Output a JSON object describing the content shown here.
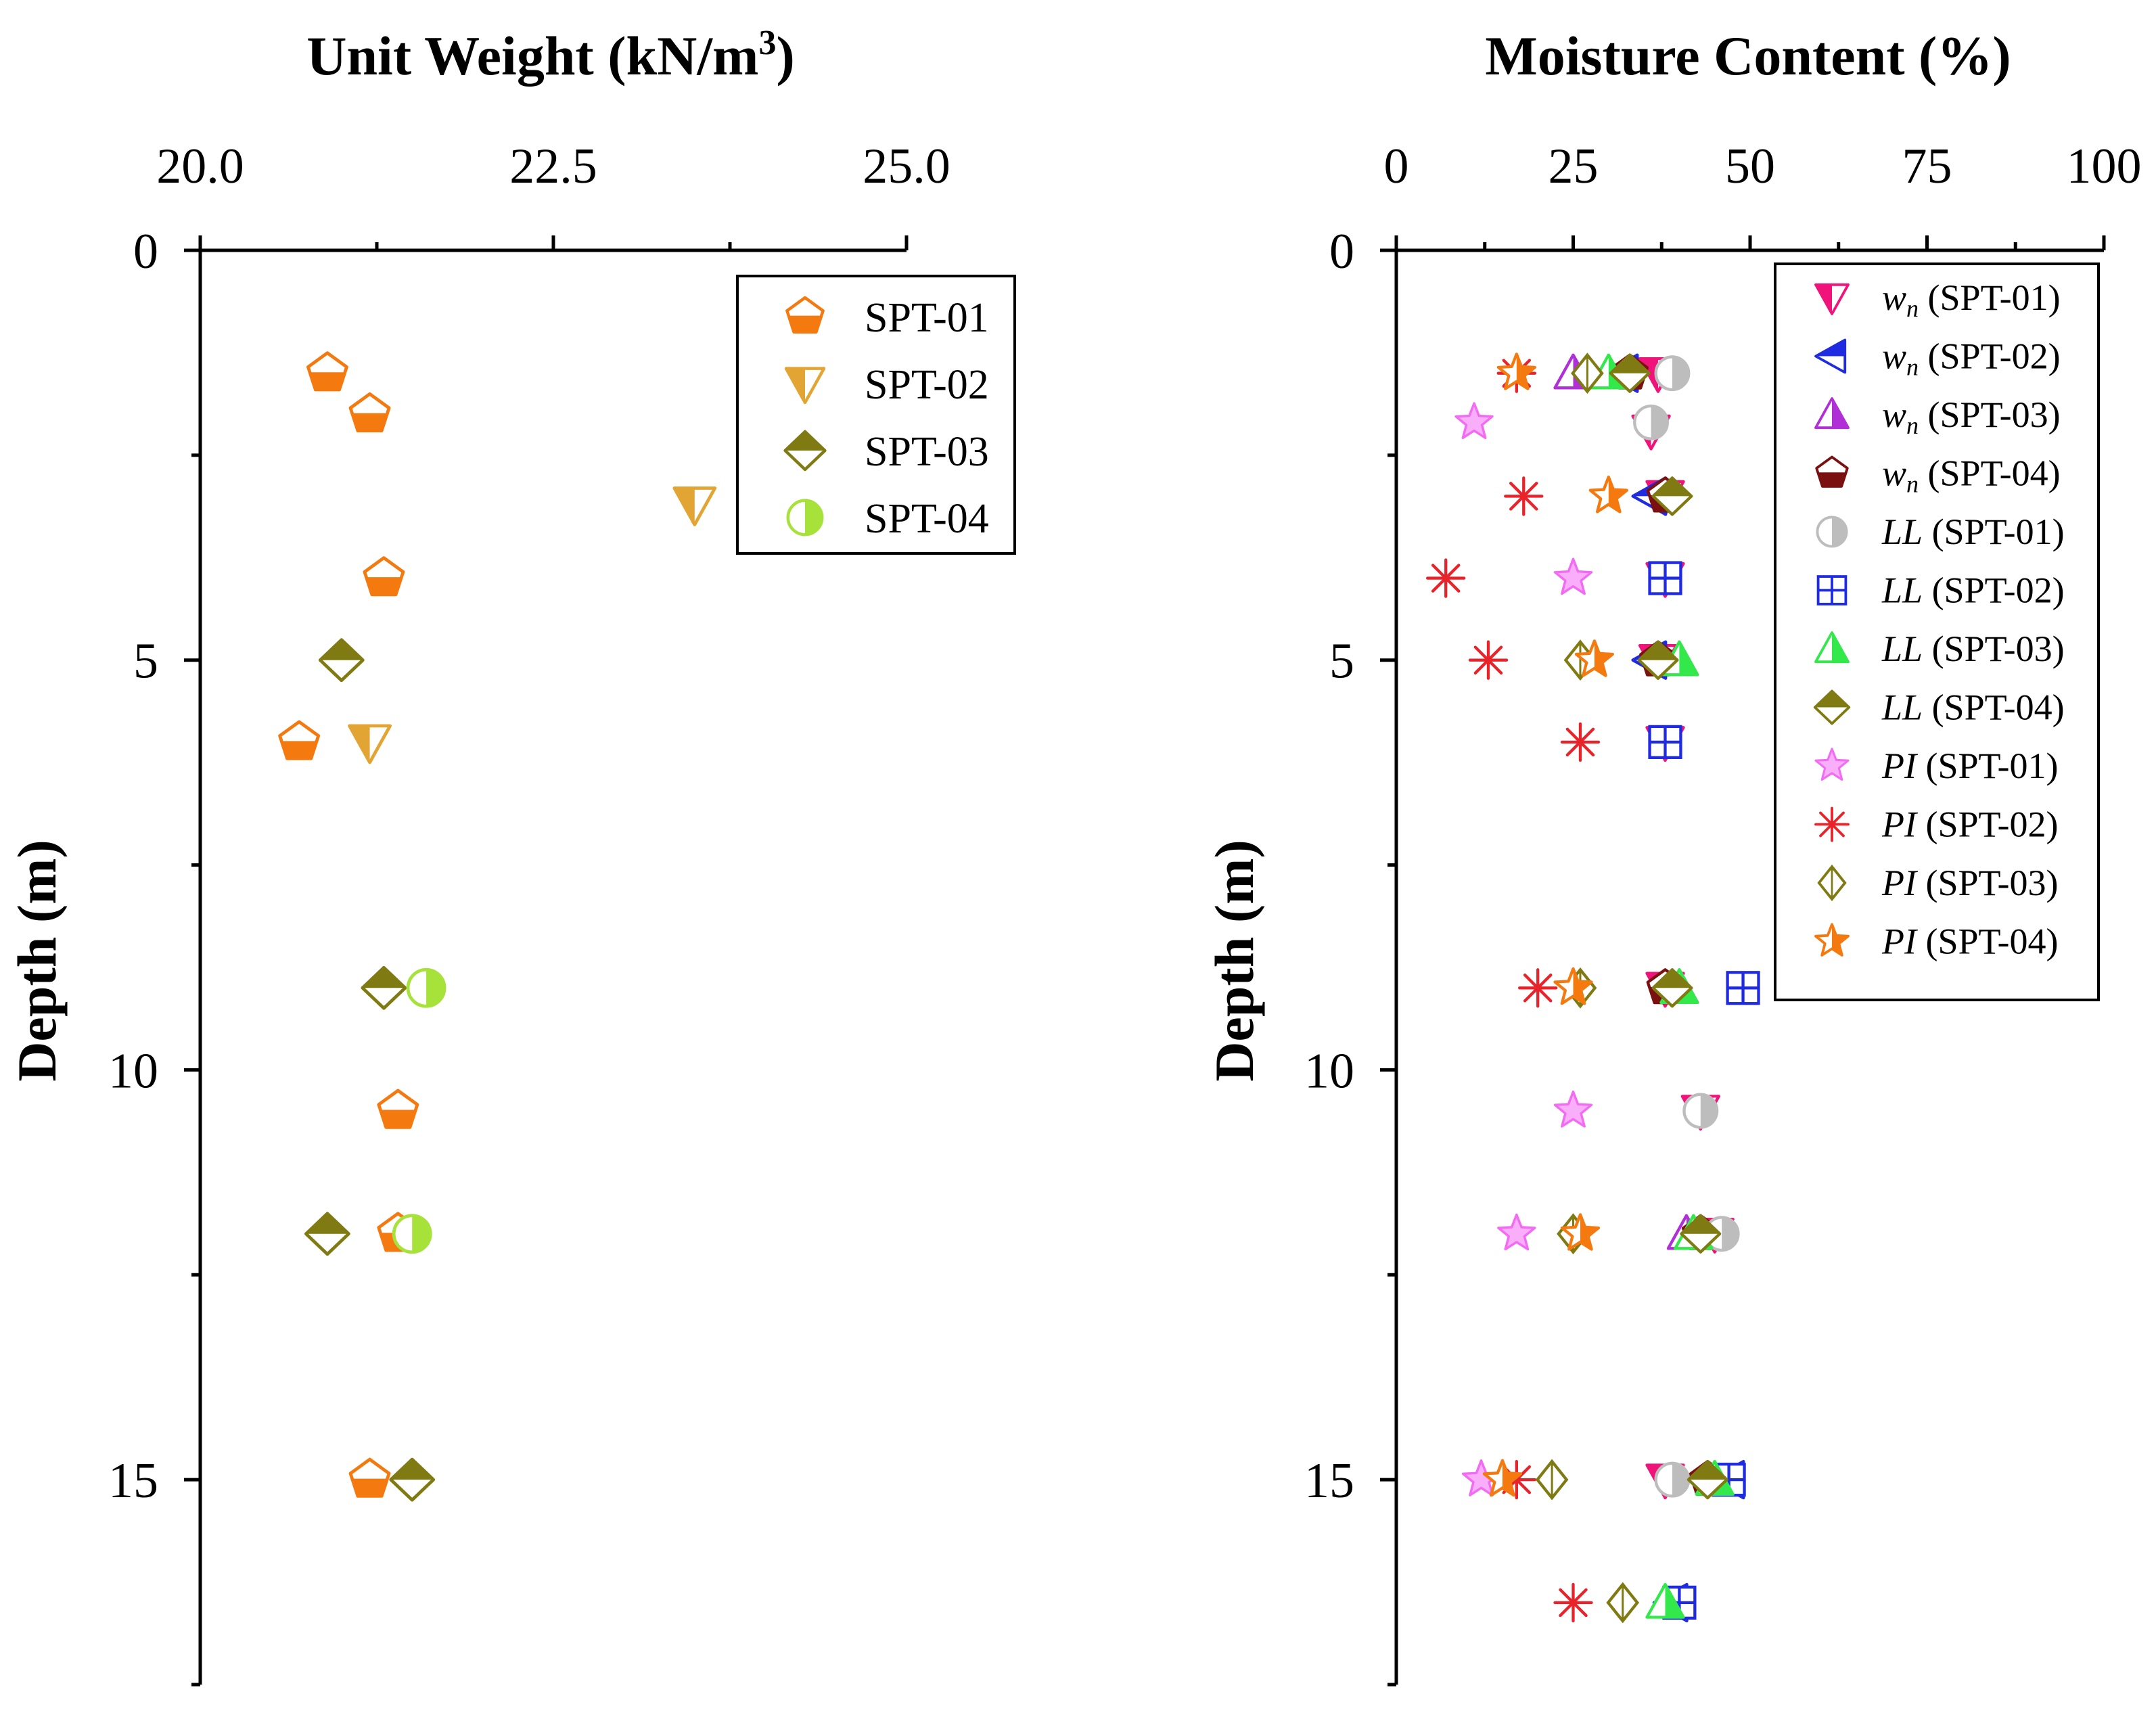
{
  "figure": {
    "panels": [
      {
        "title_prefix": "Unit Weight (kN/m",
        "title_sup": "3",
        "title_suffix": ")",
        "ylabel": "Depth (m)",
        "xticks": [
          "20.0",
          "22.5",
          "25.0"
        ],
        "yticks": [
          "0",
          "5",
          "10",
          "15"
        ],
        "legend": [
          "SPT-01",
          "SPT-02",
          "SPT-03",
          "SPT-04"
        ]
      },
      {
        "title": "Moisture Content (%)",
        "ylabel": "Depth (m)",
        "xticks": [
          "0",
          "25",
          "50",
          "75",
          "100"
        ],
        "yticks": [
          "0",
          "5",
          "10",
          "15"
        ],
        "legend": [
          {
            "sym": "w",
            "sub": "n",
            "label": " (SPT-01)"
          },
          {
            "sym": "w",
            "sub": "n",
            "label": " (SPT-02)"
          },
          {
            "sym": "w",
            "sub": "n",
            "label": " (SPT-03)"
          },
          {
            "sym": "w",
            "sub": "n",
            "label": " (SPT-04)"
          },
          {
            "sym": "LL",
            "sub": "",
            "label": " (SPT-01)"
          },
          {
            "sym": "LL",
            "sub": "",
            "label": " (SPT-02)"
          },
          {
            "sym": "LL",
            "sub": "",
            "label": " (SPT-03)"
          },
          {
            "sym": "LL",
            "sub": "",
            "label": " (SPT-04)"
          },
          {
            "sym": "PI",
            "sub": "",
            "label": " (SPT-01)"
          },
          {
            "sym": "PI",
            "sub": "",
            "label": " (SPT-02)"
          },
          {
            "sym": "PI",
            "sub": "",
            "label": " (SPT-03)"
          },
          {
            "sym": "PI",
            "sub": "",
            "label": " (SPT-04)"
          }
        ]
      }
    ]
  },
  "chart_data": [
    {
      "type": "scatter",
      "title": "Unit Weight (kN/m3)",
      "xlabel": "Unit Weight (kN/m3)",
      "ylabel": "Depth (m)",
      "xlim": [
        20.0,
        25.0
      ],
      "ylim": [
        0,
        17.5
      ],
      "y_inverted": true,
      "x_axis_position": "top",
      "legend_position": "top-right",
      "series": [
        {
          "name": "SPT-01",
          "marker": "pentagon-half",
          "color": "#F47A10",
          "points": [
            [
              20.9,
              1.5
            ],
            [
              21.2,
              2.0
            ],
            [
              21.3,
              4.0
            ],
            [
              20.7,
              6.0
            ],
            [
              21.4,
              10.5
            ],
            [
              21.4,
              12.0
            ],
            [
              21.2,
              15.0
            ]
          ]
        },
        {
          "name": "SPT-02",
          "marker": "triangle-down-half",
          "color": "#E2A533",
          "points": [
            [
              23.5,
              3.1
            ],
            [
              21.2,
              6.0
            ]
          ]
        },
        {
          "name": "SPT-03",
          "marker": "diamond-half",
          "color": "#7F7B12",
          "points": [
            [
              21.0,
              5.0
            ],
            [
              21.3,
              9.0
            ],
            [
              20.9,
              12.0
            ],
            [
              21.5,
              15.0
            ]
          ]
        },
        {
          "name": "SPT-04",
          "marker": "circle-half",
          "color": "#A6E23A",
          "points": [
            [
              21.6,
              9.0
            ],
            [
              21.5,
              12.0
            ]
          ]
        }
      ]
    },
    {
      "type": "scatter",
      "title": "Moisture Content (%)",
      "xlabel": "Moisture Content (%)",
      "ylabel": "Depth (m)",
      "xlim": [
        0,
        100
      ],
      "ylim": [
        0,
        17.5
      ],
      "y_inverted": true,
      "x_axis_position": "top",
      "legend_position": "top-right",
      "series": [
        {
          "name": "wn (SPT-01)",
          "marker": "triangle-down-half",
          "color": "#F0147A",
          "points": [
            [
              37,
              1.5
            ],
            [
              36,
              2.2
            ],
            [
              38,
              3.0
            ],
            [
              38,
              4.0
            ],
            [
              37,
              5.0
            ],
            [
              38,
              6.0
            ],
            [
              38,
              9.0
            ],
            [
              43,
              10.5
            ],
            [
              45,
              12.0
            ],
            [
              38,
              15.0
            ]
          ]
        },
        {
          "name": "wn (SPT-02)",
          "marker": "triangle-left-half",
          "color": "#1F2BE0",
          "points": [
            [
              32,
              1.5
            ],
            [
              36,
              3.0
            ],
            [
              36,
              5.0
            ],
            [
              47,
              15.0
            ],
            [
              39,
              16.5
            ]
          ]
        },
        {
          "name": "wn (SPT-03)",
          "marker": "triangle-up-half",
          "color": "#B02FD6",
          "points": [
            [
              25,
              1.5
            ],
            [
              40,
              9.0
            ],
            [
              41,
              12.0
            ]
          ]
        },
        {
          "name": "wn (SPT-04)",
          "marker": "pentagon-half",
          "color": "#7A1010",
          "points": [
            [
              33,
              1.5
            ],
            [
              38,
              3.0
            ],
            [
              37,
              5.0
            ],
            [
              38,
              9.0
            ],
            [
              43,
              12.0
            ],
            [
              44,
              15.0
            ]
          ]
        },
        {
          "name": "LL (SPT-01)",
          "marker": "circle-half",
          "color": "#BDBDBD",
          "points": [
            [
              39,
              1.5
            ],
            [
              36,
              2.1
            ],
            [
              43,
              10.5
            ],
            [
              46,
              12.0
            ],
            [
              39,
              15.0
            ]
          ]
        },
        {
          "name": "LL (SPT-02)",
          "marker": "square-cross",
          "color": "#1F2BE0",
          "points": [
            [
              38,
              4.0
            ],
            [
              38,
              6.0
            ],
            [
              49,
              9.0
            ],
            [
              47,
              15.0
            ],
            [
              40,
              16.5
            ]
          ]
        },
        {
          "name": "LL (SPT-03)",
          "marker": "triangle-up-half",
          "color": "#33E84A",
          "points": [
            [
              30,
              1.5
            ],
            [
              40,
              5.0
            ],
            [
              40,
              9.0
            ],
            [
              42,
              12.0
            ],
            [
              45,
              15.0
            ],
            [
              38,
              16.5
            ]
          ]
        },
        {
          "name": "LL (SPT-04)",
          "marker": "diamond-half",
          "color": "#7F7B12",
          "points": [
            [
              33,
              1.5
            ],
            [
              39,
              3.0
            ],
            [
              37,
              5.0
            ],
            [
              39,
              9.0
            ],
            [
              43,
              12.0
            ],
            [
              44,
              15.0
            ]
          ]
        },
        {
          "name": "PI (SPT-01)",
          "marker": "star",
          "color": "#F26BF2",
          "points": [
            [
              11,
              2.1
            ],
            [
              25,
              4.0
            ],
            [
              25,
              10.5
            ],
            [
              17,
              12.0
            ],
            [
              12,
              15.0
            ]
          ]
        },
        {
          "name": "PI (SPT-02)",
          "marker": "asterisk",
          "color": "#E8232A",
          "points": [
            [
              17,
              1.5
            ],
            [
              18,
              3.0
            ],
            [
              7,
              4.0
            ],
            [
              13,
              5.0
            ],
            [
              26,
              6.0
            ],
            [
              20,
              9.0
            ],
            [
              17,
              15.0
            ],
            [
              25,
              16.5
            ]
          ]
        },
        {
          "name": "PI (SPT-03)",
          "marker": "diamond-open",
          "color": "#7F7B12",
          "points": [
            [
              27,
              1.5
            ],
            [
              26,
              5.0
            ],
            [
              26,
              9.0
            ],
            [
              25,
              12.0
            ],
            [
              22,
              15.0
            ],
            [
              32,
              16.5
            ]
          ]
        },
        {
          "name": "PI (SPT-04)",
          "marker": "star-half",
          "color": "#F47A10",
          "points": [
            [
              17,
              1.5
            ],
            [
              30,
              3.0
            ],
            [
              28,
              5.0
            ],
            [
              25,
              9.0
            ],
            [
              26,
              12.0
            ],
            [
              15,
              15.0
            ]
          ]
        }
      ]
    }
  ]
}
